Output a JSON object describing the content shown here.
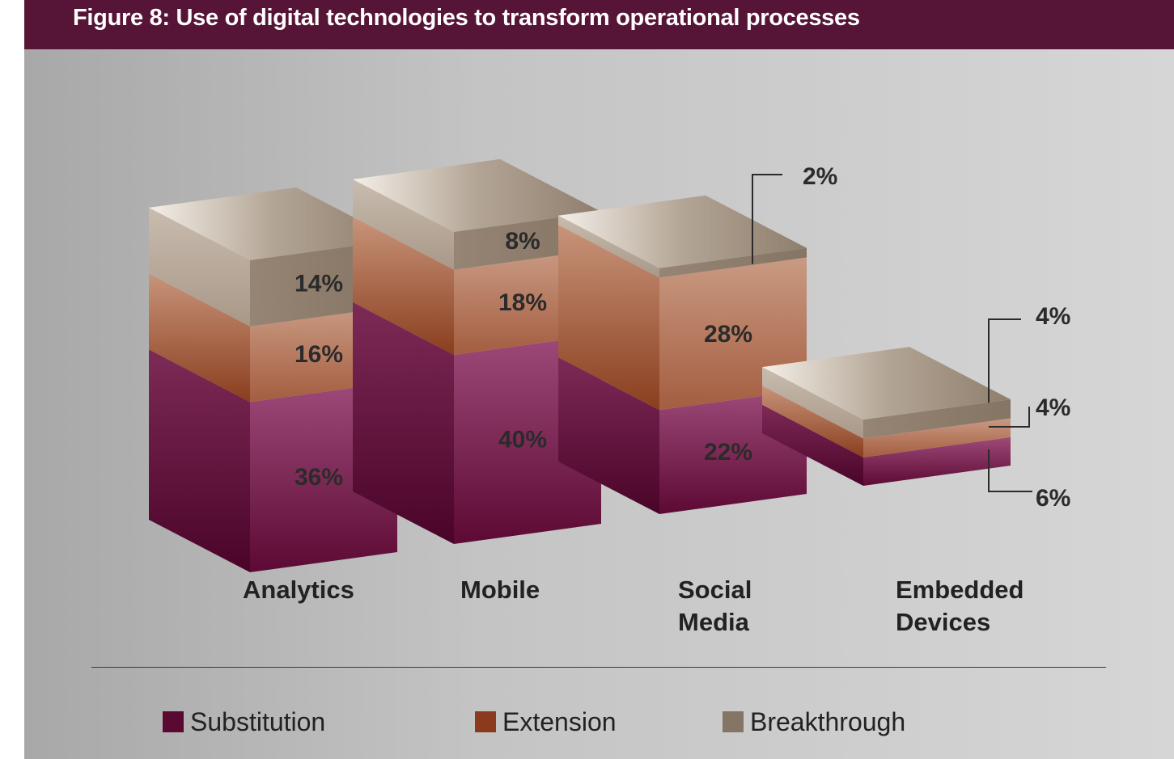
{
  "title": "Figure 8: Use of digital technologies to transform operational processes",
  "chart_data": {
    "type": "bar",
    "stacked": true,
    "categories": [
      "Analytics",
      "Mobile",
      "Social Media",
      "Embedded Devices"
    ],
    "category_lines": [
      [
        "Analytics"
      ],
      [
        "Mobile"
      ],
      [
        "Social",
        "Media"
      ],
      [
        "Embedded",
        "Devices"
      ]
    ],
    "series": [
      {
        "name": "Substitution",
        "values": [
          36,
          40,
          22,
          6
        ],
        "color": "#5a0a32"
      },
      {
        "name": "Extension",
        "values": [
          16,
          18,
          28,
          4
        ],
        "color": "#8c3a1e"
      },
      {
        "name": "Breakthrough",
        "values": [
          14,
          8,
          2,
          4
        ],
        "color": "#857565"
      }
    ],
    "value_labels": [
      [
        "36%",
        "40%",
        "22%",
        "6%"
      ],
      [
        "16%",
        "18%",
        "28%",
        "4%"
      ],
      [
        "14%",
        "8%",
        "2%",
        "4%"
      ]
    ],
    "legend": {
      "position": "bottom",
      "items": [
        "Substitution",
        "Extension",
        "Breakthrough"
      ]
    },
    "style": "3d-stacked-columns",
    "grid": false
  }
}
